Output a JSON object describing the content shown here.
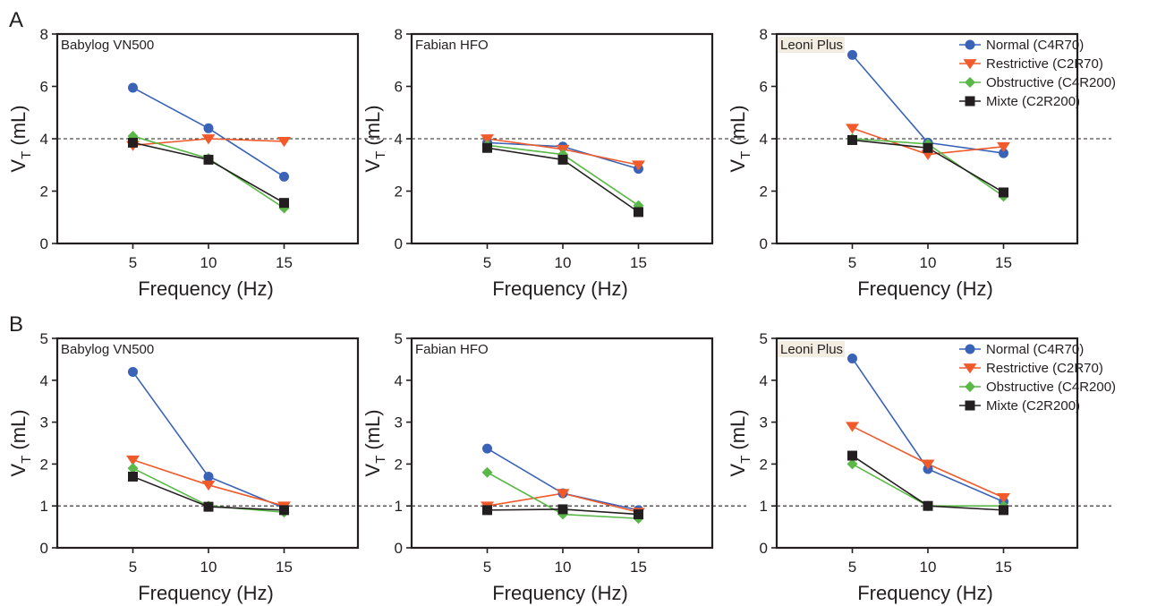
{
  "row_labels": [
    "A",
    "B"
  ],
  "chart_data": [
    {
      "type": "line",
      "row": "A",
      "title": "Babylog VN500",
      "xlabel": "Frequency (Hz)",
      "ylabel_main": "V",
      "ylabel_sub": "T",
      "ylabel_unit": " (mL)",
      "x": [
        5,
        10,
        15
      ],
      "xlim": [
        0,
        20
      ],
      "xticks": [
        5,
        10,
        15
      ],
      "ylim": [
        0,
        8
      ],
      "yticks": [
        0,
        2,
        4,
        6,
        8
      ],
      "reference_line": 4,
      "legend": false,
      "series": [
        {
          "name": "Normal (C4R70)",
          "values": [
            5.95,
            4.4,
            2.55
          ]
        },
        {
          "name": "Restrictive (C2R70)",
          "values": [
            3.75,
            4.0,
            3.9
          ]
        },
        {
          "name": "Obstructive (C4R200)",
          "values": [
            4.1,
            3.25,
            1.35
          ]
        },
        {
          "name": "Mixte (C2R200)",
          "values": [
            3.85,
            3.2,
            1.55
          ]
        }
      ]
    },
    {
      "type": "line",
      "row": "A",
      "title": "Fabian HFO",
      "xlabel": "Frequency (Hz)",
      "ylabel_main": "V",
      "ylabel_sub": "T",
      "ylabel_unit": " (mL)",
      "x": [
        5,
        10,
        15
      ],
      "xlim": [
        0,
        20
      ],
      "xticks": [
        5,
        10,
        15
      ],
      "ylim": [
        0,
        8
      ],
      "yticks": [
        0,
        2,
        4,
        6,
        8
      ],
      "reference_line": 4,
      "legend": false,
      "series": [
        {
          "name": "Normal (C4R70)",
          "values": [
            3.85,
            3.7,
            2.85
          ]
        },
        {
          "name": "Restrictive (C2R70)",
          "values": [
            4.0,
            3.6,
            3.0
          ]
        },
        {
          "name": "Obstructive (C4R200)",
          "values": [
            3.75,
            3.4,
            1.45
          ]
        },
        {
          "name": "Mixte (C2R200)",
          "values": [
            3.65,
            3.2,
            1.2
          ]
        }
      ]
    },
    {
      "type": "line",
      "row": "A",
      "title": "Leoni Plus",
      "xlabel": "Frequency (Hz)",
      "ylabel_main": "V",
      "ylabel_sub": "T",
      "ylabel_unit": " (mL)",
      "x": [
        5,
        10,
        15
      ],
      "xlim": [
        0,
        20
      ],
      "xticks": [
        5,
        10,
        15
      ],
      "ylim": [
        0,
        8
      ],
      "yticks": [
        0,
        2,
        4,
        6,
        8
      ],
      "reference_line": 4,
      "legend": true,
      "series": [
        {
          "name": "Normal (C4R70)",
          "values": [
            7.2,
            3.85,
            3.45
          ]
        },
        {
          "name": "Restrictive (C2R70)",
          "values": [
            4.4,
            3.4,
            3.7
          ]
        },
        {
          "name": "Obstructive (C4R200)",
          "values": [
            4.0,
            3.8,
            1.8
          ]
        },
        {
          "name": "Mixte (C2R200)",
          "values": [
            3.95,
            3.65,
            1.95
          ]
        }
      ]
    },
    {
      "type": "line",
      "row": "B",
      "title": "Babylog VN500",
      "xlabel": "Frequency (Hz)",
      "ylabel_main": "V",
      "ylabel_sub": "T",
      "ylabel_unit": " (mL)",
      "x": [
        5,
        10,
        15
      ],
      "xlim": [
        0,
        20
      ],
      "xticks": [
        5,
        10,
        15
      ],
      "ylim": [
        0,
        5
      ],
      "yticks": [
        0,
        1,
        2,
        3,
        4,
        5
      ],
      "reference_line": 1,
      "legend": false,
      "series": [
        {
          "name": "Normal (C4R70)",
          "values": [
            4.2,
            1.7,
            0.95
          ]
        },
        {
          "name": "Restrictive (C2R70)",
          "values": [
            2.1,
            1.5,
            1.0
          ]
        },
        {
          "name": "Obstructive (C4R200)",
          "values": [
            1.9,
            1.0,
            0.85
          ]
        },
        {
          "name": "Mixte (C2R200)",
          "values": [
            1.7,
            0.98,
            0.9
          ]
        }
      ]
    },
    {
      "type": "line",
      "row": "B",
      "title": "Fabian HFO",
      "xlabel": "Frequency (Hz)",
      "ylabel_main": "V",
      "ylabel_sub": "T",
      "ylabel_unit": " (mL)",
      "x": [
        5,
        10,
        15
      ],
      "xlim": [
        0,
        20
      ],
      "xticks": [
        5,
        10,
        15
      ],
      "ylim": [
        0,
        5
      ],
      "yticks": [
        0,
        1,
        2,
        3,
        4,
        5
      ],
      "reference_line": 1,
      "legend": false,
      "series": [
        {
          "name": "Normal (C4R70)",
          "values": [
            2.37,
            1.3,
            0.9
          ]
        },
        {
          "name": "Restrictive (C2R70)",
          "values": [
            1.0,
            1.3,
            0.85
          ]
        },
        {
          "name": "Obstructive (C4R200)",
          "values": [
            1.8,
            0.8,
            0.7
          ]
        },
        {
          "name": "Mixte (C2R200)",
          "values": [
            0.9,
            0.92,
            0.8
          ]
        }
      ]
    },
    {
      "type": "line",
      "row": "B",
      "title": "Leoni Plus",
      "xlabel": "Frequency (Hz)",
      "ylabel_main": "V",
      "ylabel_sub": "T",
      "ylabel_unit": " (mL)",
      "x": [
        5,
        10,
        15
      ],
      "xlim": [
        0,
        20
      ],
      "xticks": [
        5,
        10,
        15
      ],
      "ylim": [
        0,
        5
      ],
      "yticks": [
        0,
        1,
        2,
        3,
        4,
        5
      ],
      "reference_line": 1,
      "legend": true,
      "series": [
        {
          "name": "Normal (C4R70)",
          "values": [
            4.52,
            1.88,
            1.1
          ]
        },
        {
          "name": "Restrictive (C2R70)",
          "values": [
            2.9,
            2.0,
            1.2
          ]
        },
        {
          "name": "Obstructive (C4R200)",
          "values": [
            2.0,
            1.0,
            1.0
          ]
        },
        {
          "name": "Mixte (C2R200)",
          "values": [
            2.2,
            1.0,
            0.9
          ]
        }
      ]
    }
  ],
  "series_styles": [
    {
      "name": "Normal (C4R70)",
      "color": "#3a63b8",
      "marker": "circle"
    },
    {
      "name": "Restrictive (C2R70)",
      "color": "#f15a2b",
      "marker": "triangle-down"
    },
    {
      "name": "Obstructive (C4R200)",
      "color": "#5ab848",
      "marker": "diamond"
    },
    {
      "name": "Mixte (C2R200)",
      "color": "#231f20",
      "marker": "square"
    }
  ]
}
